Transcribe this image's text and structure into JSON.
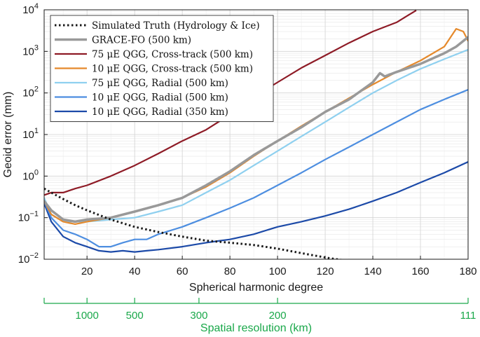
{
  "chart_data": {
    "type": "line",
    "xlabel": "Spherical harmonic degree",
    "ylabel": "Geoid error (mm)",
    "xlim": [
      2,
      180
    ],
    "ylim_log10": [
      -2,
      4
    ],
    "y_scale": "log",
    "x_ticks": [
      20,
      40,
      60,
      80,
      100,
      120,
      140,
      160,
      180
    ],
    "y_tick_exponents": [
      -2,
      -1,
      0,
      1,
      2,
      3,
      4
    ],
    "y_tick_base": "10",
    "grid": true,
    "legend_position": "top-left",
    "secondary_axis": {
      "label": "Spatial resolution (km)",
      "color": "#1aa84a",
      "ticks": [
        {
          "degree": 20,
          "label": "1000"
        },
        {
          "degree": 40,
          "label": "500"
        },
        {
          "degree": 67,
          "label": "300"
        },
        {
          "degree": 100,
          "label": "200"
        },
        {
          "degree": 180,
          "label": "111"
        }
      ]
    },
    "series": [
      {
        "name": "Simulated Truth (Hydrology & Ice)",
        "color": "#1a1a1a",
        "dashed": true,
        "width": 3,
        "x": [
          2,
          5,
          10,
          15,
          20,
          30,
          40,
          50,
          60,
          70,
          80,
          90,
          100,
          110,
          120,
          130
        ],
        "y": [
          0.5,
          0.4,
          0.28,
          0.2,
          0.15,
          0.09,
          0.06,
          0.045,
          0.035,
          0.028,
          0.025,
          0.022,
          0.018,
          0.014,
          0.011,
          0.009
        ]
      },
      {
        "name": "GRACE-FO (500 km)",
        "color": "#999999",
        "width": 3.5,
        "x": [
          2,
          5,
          10,
          15,
          20,
          30,
          40,
          50,
          60,
          70,
          80,
          90,
          100,
          110,
          120,
          130,
          140,
          143,
          145,
          150,
          160,
          170,
          175,
          180
        ],
        "y": [
          0.25,
          0.15,
          0.09,
          0.08,
          0.09,
          0.1,
          0.14,
          0.2,
          0.3,
          0.6,
          1.3,
          3.2,
          7,
          15,
          35,
          70,
          180,
          300,
          250,
          320,
          500,
          900,
          1300,
          2200
        ]
      },
      {
        "name": "75 μE QGG, Cross-track (500 km)",
        "color": "#8e1b26",
        "width": 2.2,
        "x": [
          2,
          5,
          10,
          15,
          20,
          30,
          40,
          50,
          60,
          70,
          80,
          90,
          100,
          110,
          120,
          130,
          140,
          150,
          155,
          158
        ],
        "y": [
          0.35,
          0.4,
          0.4,
          0.5,
          0.6,
          1.0,
          1.8,
          3.5,
          7,
          13,
          30,
          80,
          180,
          400,
          800,
          1600,
          3000,
          5000,
          7500,
          9500
        ]
      },
      {
        "name": "10 μE QGG, Cross-track (500 km)",
        "color": "#e5892b",
        "width": 2.2,
        "x": [
          2,
          5,
          10,
          15,
          20,
          30,
          40,
          50,
          60,
          70,
          80,
          90,
          100,
          110,
          120,
          130,
          140,
          150,
          160,
          170,
          175,
          178,
          180
        ],
        "y": [
          0.25,
          0.12,
          0.08,
          0.07,
          0.08,
          0.1,
          0.14,
          0.2,
          0.3,
          0.55,
          1.2,
          3,
          7,
          16,
          35,
          75,
          160,
          320,
          600,
          1300,
          3500,
          3000,
          1800
        ]
      },
      {
        "name": "75 μE QGG, Radial (500 km)",
        "color": "#8fd0ef",
        "width": 2.2,
        "x": [
          2,
          5,
          10,
          15,
          20,
          30,
          40,
          50,
          60,
          70,
          80,
          90,
          100,
          110,
          120,
          130,
          140,
          150,
          160,
          170,
          180
        ],
        "y": [
          0.3,
          0.12,
          0.08,
          0.08,
          0.08,
          0.09,
          0.1,
          0.14,
          0.2,
          0.4,
          0.8,
          1.8,
          4,
          9,
          20,
          45,
          100,
          200,
          380,
          650,
          1100
        ]
      },
      {
        "name": "10 μE QGG, Radial (500 km)",
        "color": "#4d8ee0",
        "width": 2.2,
        "x": [
          2,
          5,
          10,
          15,
          20,
          25,
          30,
          35,
          40,
          45,
          50,
          60,
          70,
          80,
          90,
          100,
          110,
          120,
          130,
          140,
          150,
          160,
          170,
          180
        ],
        "y": [
          0.25,
          0.1,
          0.05,
          0.04,
          0.03,
          0.02,
          0.02,
          0.025,
          0.03,
          0.03,
          0.04,
          0.06,
          0.1,
          0.17,
          0.3,
          0.6,
          1.2,
          2.5,
          5,
          10,
          20,
          40,
          70,
          120
        ]
      },
      {
        "name": "10 μE QGG, Radial (350 km)",
        "color": "#1c4aa8",
        "width": 2.2,
        "x": [
          2,
          5,
          10,
          15,
          20,
          25,
          30,
          35,
          40,
          45,
          50,
          60,
          70,
          80,
          90,
          100,
          110,
          120,
          130,
          140,
          150,
          160,
          170,
          180
        ],
        "y": [
          0.22,
          0.08,
          0.035,
          0.025,
          0.02,
          0.016,
          0.015,
          0.016,
          0.015,
          0.016,
          0.017,
          0.02,
          0.025,
          0.03,
          0.04,
          0.06,
          0.08,
          0.11,
          0.16,
          0.25,
          0.4,
          0.7,
          1.2,
          2.2
        ]
      }
    ]
  }
}
